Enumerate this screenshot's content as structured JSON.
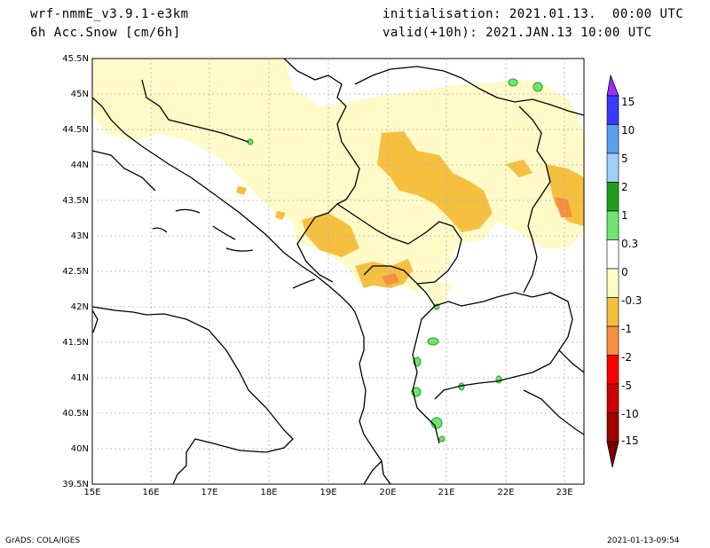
{
  "header": {
    "model": "wrf-nmmE_v3.9.1-e3km",
    "field": "6h Acc.Snow [cm/6h]",
    "init": "initialisation: 2021.01.13.  00:00 UTC",
    "valid": "valid(+10h): 2021.JAN.13 10:00 UTC"
  },
  "footer": {
    "credit": "GrADS: COLA/IGES",
    "timestamp": "2021-01-13-09:54"
  },
  "axes": {
    "lat_labels": [
      "45.5N",
      "45N",
      "44.5N",
      "44N",
      "43.5N",
      "43N",
      "42.5N",
      "42N",
      "41.5N",
      "41N",
      "40.5N",
      "40N",
      "39.5N"
    ],
    "lon_labels": [
      "15E",
      "16E",
      "17E",
      "18E",
      "19E",
      "20E",
      "21E",
      "22E",
      "23E"
    ]
  },
  "colorbar": {
    "levels": [
      "15",
      "10",
      "5",
      "2",
      "1",
      "0.3",
      "0",
      "-0.3",
      "-1",
      "-2",
      "-5",
      "-10",
      "-15"
    ],
    "colors": [
      "#6a00ff",
      "#3a3aff",
      "#5aa0f0",
      "#a0d0f8",
      "#1ea01e",
      "#6ee66e",
      "#ffffff",
      "#fffac8",
      "#f5c040",
      "#f59040",
      "#ff0000",
      "#c80000",
      "#a00000"
    ],
    "top_arrow_color": "#9b30ff",
    "bottom_arrow_color": "#7a0000"
  }
}
